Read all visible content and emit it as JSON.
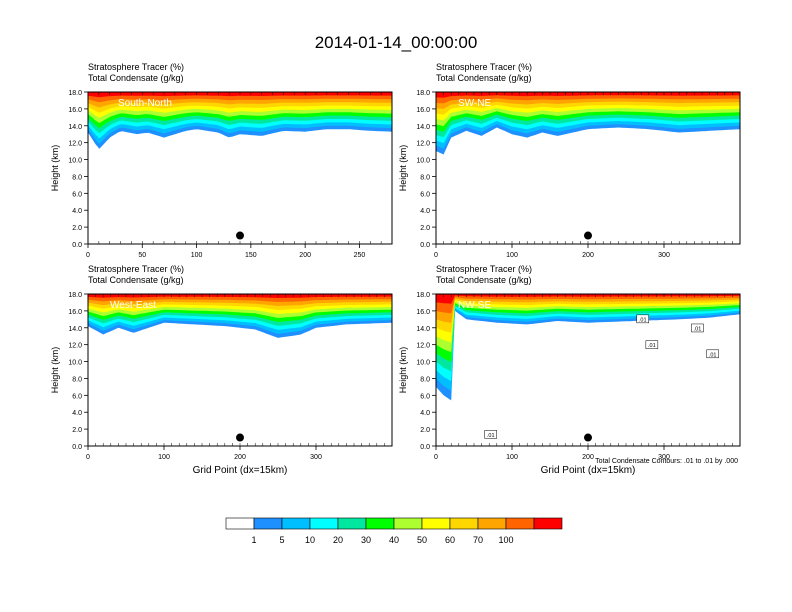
{
  "title": "2014-01-14_00:00:00",
  "panel_titles": {
    "line1": "Stratosphere Tracer   (%)",
    "line2": "Total Condensate   (g/kg)"
  },
  "contour_note": "Total Condensate Contours: .01 to .01 by .000",
  "chart_data": [
    {
      "type": "heatmap",
      "label": "South-North",
      "ylabel": "Height (km)",
      "xlabel": "",
      "xlim": [
        0,
        280
      ],
      "ylim": [
        0,
        18
      ],
      "xticks": [
        "0",
        "50",
        "100",
        "150",
        "200",
        "250"
      ],
      "yticks": [
        "0.0",
        "2.0",
        "4.0",
        "6.0",
        "8.0",
        "10.0",
        "12.0",
        "14.0",
        "16.0",
        "18.0"
      ],
      "marker": {
        "x": 140,
        "y": 1.0
      },
      "tracer_base_km": [
        [
          0,
          13.2
        ],
        [
          10,
          11.2
        ],
        [
          20,
          12.6
        ],
        [
          30,
          13.4
        ],
        [
          45,
          13.0
        ],
        [
          55,
          13.2
        ],
        [
          70,
          12.6
        ],
        [
          90,
          13.4
        ],
        [
          100,
          13.6
        ],
        [
          120,
          13.2
        ],
        [
          130,
          12.6
        ],
        [
          140,
          13.0
        ],
        [
          160,
          12.8
        ],
        [
          180,
          13.4
        ],
        [
          200,
          13.3
        ],
        [
          220,
          13.6
        ],
        [
          240,
          13.6
        ],
        [
          260,
          13.4
        ],
        [
          280,
          13.3
        ]
      ]
    },
    {
      "type": "heatmap",
      "label": "SW-NE",
      "ylabel": "Height (km)",
      "xlabel": "",
      "xlim": [
        0,
        400
      ],
      "ylim": [
        0,
        18
      ],
      "xticks": [
        "0",
        "100",
        "200",
        "300"
      ],
      "yticks": [
        "0.0",
        "2.0",
        "4.0",
        "6.0",
        "8.0",
        "10.0",
        "12.0",
        "14.0",
        "16.0",
        "18.0"
      ],
      "marker": {
        "x": 200,
        "y": 1.0
      },
      "tracer_base_km": [
        [
          0,
          11.0
        ],
        [
          10,
          10.6
        ],
        [
          20,
          12.6
        ],
        [
          40,
          13.4
        ],
        [
          60,
          12.8
        ],
        [
          80,
          13.8
        ],
        [
          100,
          13.0
        ],
        [
          120,
          12.6
        ],
        [
          140,
          13.2
        ],
        [
          160,
          12.8
        ],
        [
          180,
          13.2
        ],
        [
          200,
          13.6
        ],
        [
          240,
          13.8
        ],
        [
          280,
          13.6
        ],
        [
          320,
          13.2
        ],
        [
          360,
          13.4
        ],
        [
          400,
          13.6
        ]
      ]
    },
    {
      "type": "heatmap",
      "label": "West-East",
      "ylabel": "Height (km)",
      "xlabel": "Grid Point (dx=15km)",
      "xlim": [
        0,
        400
      ],
      "ylim": [
        0,
        18
      ],
      "xticks": [
        "0",
        "100",
        "200",
        "300"
      ],
      "yticks": [
        "0.0",
        "2.0",
        "4.0",
        "6.0",
        "8.0",
        "10.0",
        "12.0",
        "14.0",
        "16.0",
        "18.0"
      ],
      "marker": {
        "x": 200,
        "y": 1.0
      },
      "tracer_base_km": [
        [
          0,
          14.2
        ],
        [
          20,
          13.2
        ],
        [
          40,
          14.0
        ],
        [
          60,
          13.4
        ],
        [
          80,
          14.0
        ],
        [
          100,
          14.6
        ],
        [
          140,
          14.4
        ],
        [
          180,
          14.2
        ],
        [
          220,
          13.8
        ],
        [
          250,
          12.8
        ],
        [
          280,
          13.2
        ],
        [
          300,
          14.0
        ],
        [
          340,
          14.4
        ],
        [
          400,
          14.6
        ]
      ]
    },
    {
      "type": "heatmap",
      "label": "NW-SE",
      "ylabel": "Height (km)",
      "xlabel": "Grid Point (dx=15km)",
      "xlim": [
        0,
        400
      ],
      "ylim": [
        0,
        18
      ],
      "xticks": [
        "0",
        "100",
        "200",
        "300"
      ],
      "yticks": [
        "0.0",
        "2.0",
        "4.0",
        "6.0",
        "8.0",
        "10.0",
        "12.0",
        "14.0",
        "16.0",
        "18.0"
      ],
      "marker": {
        "x": 200,
        "y": 1.0
      },
      "contour_labels": [
        ".01",
        ".01",
        ".01",
        ".01",
        ".01"
      ],
      "tracer_base_km": [
        [
          0,
          7.0
        ],
        [
          10,
          6.0
        ],
        [
          20,
          5.4
        ],
        [
          25,
          16.0
        ],
        [
          40,
          15.0
        ],
        [
          80,
          14.6
        ],
        [
          120,
          14.4
        ],
        [
          160,
          14.8
        ],
        [
          200,
          14.6
        ],
        [
          260,
          14.8
        ],
        [
          320,
          15.0
        ],
        [
          360,
          15.2
        ],
        [
          400,
          15.6
        ]
      ]
    }
  ],
  "colorbar": {
    "colors": [
      "#ffffff",
      "#1e90ff",
      "#00bfff",
      "#00ffff",
      "#00e8a0",
      "#00ff00",
      "#adff2f",
      "#ffff00",
      "#ffd700",
      "#ffa500",
      "#ff6400",
      "#ff0000"
    ],
    "labels": [
      "1",
      "5",
      "10",
      "20",
      "30",
      "40",
      "50",
      "60",
      "70",
      "100"
    ]
  }
}
